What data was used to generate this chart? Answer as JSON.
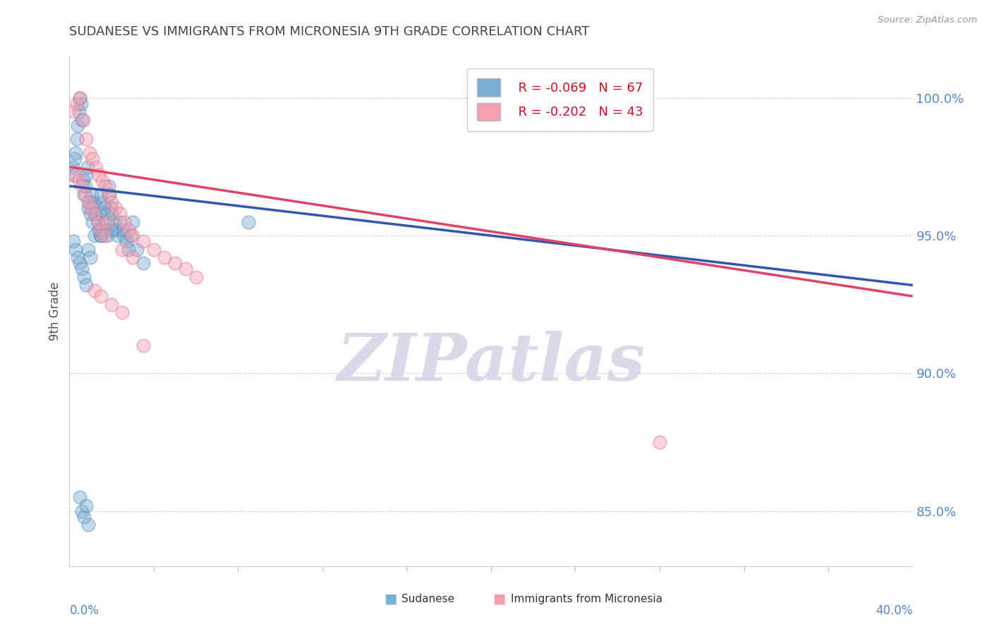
{
  "title": "SUDANESE VS IMMIGRANTS FROM MICRONESIA 9TH GRADE CORRELATION CHART",
  "source_text": "Source: ZipAtlas.com",
  "ylabel": "9th Grade",
  "xlim": [
    0.0,
    40.0
  ],
  "ylim": [
    83.0,
    101.5
  ],
  "legend_blue_r": "R = -0.069",
  "legend_blue_n": "N = 67",
  "legend_pink_r": "R = -0.202",
  "legend_pink_n": "N = 43",
  "blue_color": "#7BAFD4",
  "blue_edge": "#5588BB",
  "pink_color": "#F4A0B0",
  "pink_edge": "#E07090",
  "blue_line_color": "#3355AA",
  "pink_line_color": "#DD4466",
  "dashed_line_color": "#6688CC",
  "watermark_text": "ZIPatlas",
  "watermark_color": "#DADAE8",
  "y_ticks": [
    85.0,
    90.0,
    95.0,
    100.0
  ],
  "y_tick_labels": [
    "85.0%",
    "90.0%",
    "95.0%",
    "100.0%"
  ],
  "grid_color": "#C8C8D0",
  "bg_color": "#FFFFFF",
  "title_color": "#444444",
  "tick_label_color": "#5588CC",
  "blue_scatter_x": [
    0.15,
    0.2,
    0.25,
    0.3,
    0.35,
    0.4,
    0.45,
    0.5,
    0.55,
    0.6,
    0.65,
    0.7,
    0.75,
    0.8,
    0.85,
    0.9,
    0.95,
    1.0,
    1.05,
    1.1,
    1.15,
    1.2,
    1.25,
    1.3,
    1.35,
    1.4,
    1.45,
    1.5,
    1.55,
    1.6,
    1.65,
    1.7,
    1.75,
    1.8,
    1.85,
    1.9,
    1.95,
    2.0,
    2.1,
    2.2,
    2.3,
    2.4,
    2.5,
    2.6,
    2.7,
    2.8,
    2.9,
    3.0,
    3.2,
    3.5,
    0.2,
    0.3,
    0.4,
    0.5,
    0.6,
    0.7,
    0.8,
    0.9,
    1.0,
    1.5,
    2.0,
    8.5,
    0.5,
    0.6,
    0.7,
    0.8,
    0.9
  ],
  "blue_scatter_y": [
    97.5,
    97.2,
    97.8,
    98.0,
    98.5,
    99.0,
    99.5,
    100.0,
    99.8,
    99.2,
    97.0,
    96.5,
    96.8,
    97.2,
    97.5,
    96.0,
    96.2,
    95.8,
    96.5,
    95.5,
    96.2,
    95.0,
    95.8,
    96.0,
    95.5,
    95.2,
    95.0,
    96.5,
    95.8,
    96.2,
    96.0,
    95.5,
    95.2,
    95.0,
    96.8,
    96.5,
    96.0,
    95.8,
    95.5,
    95.2,
    95.0,
    95.5,
    95.2,
    95.0,
    94.8,
    94.5,
    95.0,
    95.5,
    94.5,
    94.0,
    94.8,
    94.5,
    94.2,
    94.0,
    93.8,
    93.5,
    93.2,
    94.5,
    94.2,
    95.0,
    95.2,
    95.5,
    85.5,
    85.0,
    84.8,
    85.2,
    84.5
  ],
  "pink_scatter_x": [
    0.2,
    0.35,
    0.5,
    0.65,
    0.8,
    0.95,
    1.1,
    1.25,
    1.4,
    1.55,
    1.7,
    1.85,
    2.0,
    2.2,
    2.4,
    2.6,
    2.8,
    3.0,
    3.5,
    4.0,
    4.5,
    5.0,
    5.5,
    6.0,
    0.3,
    0.45,
    0.6,
    0.75,
    0.9,
    1.05,
    1.2,
    1.35,
    1.5,
    1.65,
    1.8,
    2.5,
    3.0,
    1.2,
    1.5,
    2.0,
    2.5,
    28.0,
    3.5
  ],
  "pink_scatter_y": [
    99.5,
    99.8,
    100.0,
    99.2,
    98.5,
    98.0,
    97.8,
    97.5,
    97.2,
    97.0,
    96.8,
    96.5,
    96.2,
    96.0,
    95.8,
    95.5,
    95.2,
    95.0,
    94.8,
    94.5,
    94.2,
    94.0,
    93.8,
    93.5,
    97.2,
    97.0,
    96.8,
    96.5,
    96.2,
    96.0,
    95.8,
    95.5,
    95.2,
    95.0,
    95.5,
    94.5,
    94.2,
    93.0,
    92.8,
    92.5,
    92.2,
    87.5,
    91.0
  ],
  "blue_trend_x0": 0.0,
  "blue_trend_y0": 96.8,
  "blue_trend_x1": 40.0,
  "blue_trend_y1": 93.2,
  "pink_trend_x0": 0.0,
  "pink_trend_y0": 97.5,
  "pink_trend_x1": 40.0,
  "pink_trend_y1": 92.8,
  "dashed_start_x": 14.0,
  "dashed_end_x": 40.0
}
